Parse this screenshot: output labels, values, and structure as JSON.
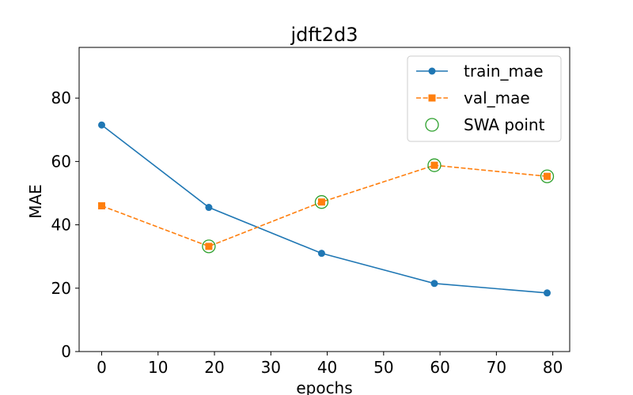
{
  "chart_data": {
    "type": "line",
    "title": "jdft2d3",
    "xlabel": "epochs",
    "ylabel": "MAE",
    "xlim": [
      -4,
      83
    ],
    "ylim": [
      0,
      96
    ],
    "xticks": [
      0,
      10,
      20,
      30,
      40,
      50,
      60,
      70,
      80
    ],
    "yticks": [
      0,
      20,
      40,
      60,
      80
    ],
    "grid": false,
    "legend_position": "top-right",
    "series": [
      {
        "name": "train_mae",
        "style": "solid",
        "marker": "circle",
        "color": "#1f77b4",
        "x": [
          0,
          19,
          39,
          59,
          79
        ],
        "y": [
          71.5,
          45.5,
          31.0,
          21.5,
          18.5
        ]
      },
      {
        "name": "val_mae",
        "style": "dashed",
        "marker": "square",
        "color": "#ff7f0e",
        "x": [
          0,
          19,
          39,
          59,
          79
        ],
        "y": [
          46.0,
          33.2,
          47.2,
          58.8,
          55.3
        ]
      },
      {
        "name": "SWA point",
        "style": "none",
        "marker": "open-circle",
        "color": "#2ca02c",
        "x": [
          19,
          39,
          59,
          79
        ],
        "y": [
          33.2,
          47.2,
          58.8,
          55.3
        ]
      }
    ]
  }
}
